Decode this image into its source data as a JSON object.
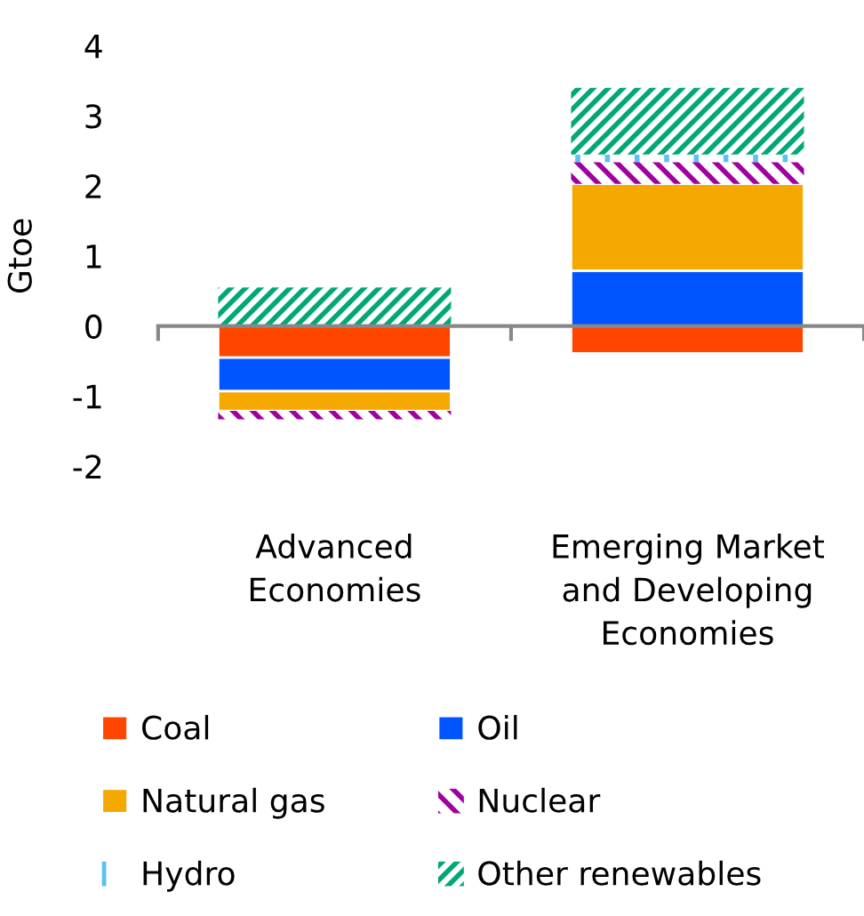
{
  "chart_data": {
    "type": "bar",
    "stacked": true,
    "ylabel": "Gtoe",
    "categories": [
      "Advanced\nEconomies",
      "Emerging Market\nand Developing\nEconomies"
    ],
    "series": [
      {
        "name": "Coal",
        "color": "#ff4500",
        "values": [
          -0.45,
          -0.39
        ]
      },
      {
        "name": "Oil",
        "color": "#0055ff",
        "values": [
          -0.48,
          0.79
        ]
      },
      {
        "name": "Natural gas",
        "color": "#f5a800",
        "values": [
          -0.28,
          1.24
        ]
      },
      {
        "name": "Nuclear",
        "color": "#a000a0",
        "values": [
          -0.12,
          0.31
        ]
      },
      {
        "name": "Hydro",
        "color": "#5bc0f5",
        "values": [
          0,
          0.11
        ]
      },
      {
        "name": "Other renewables",
        "color": "#00a878",
        "values": [
          0.55,
          0.95
        ]
      }
    ],
    "ylim": [
      -2,
      4
    ],
    "yticks": [
      {
        "value": -2,
        "label": "-2"
      },
      {
        "value": -1,
        "label": "-1"
      },
      0,
      1,
      2,
      3,
      4
    ],
    "legend": "bottom"
  }
}
